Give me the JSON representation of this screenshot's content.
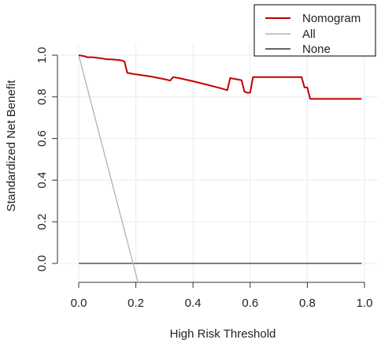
{
  "chart_data": {
    "type": "line",
    "xlabel": "High Risk Threshold",
    "ylabel": "Standardized Net Benefit",
    "xlim": [
      0,
      1
    ],
    "ylim": [
      -0.1,
      1.05
    ],
    "x_ticks": [
      0.0,
      0.2,
      0.4,
      0.6,
      0.8,
      1.0
    ],
    "x_tick_labels": [
      "0.0",
      "0.2",
      "0.4",
      "0.6",
      "0.8",
      "1.0"
    ],
    "y_ticks": [
      0.0,
      0.2,
      0.4,
      0.6,
      0.8,
      1.0
    ],
    "y_tick_labels": [
      "0.0",
      "0.2",
      "0.4",
      "0.6",
      "0.8",
      "1.0"
    ],
    "grid": true,
    "legend_position": "top-right",
    "series": [
      {
        "name": "Nomogram",
        "color": "#c00000",
        "x": [
          0.0,
          0.02,
          0.03,
          0.05,
          0.08,
          0.1,
          0.11,
          0.13,
          0.15,
          0.16,
          0.17,
          0.2,
          0.25,
          0.3,
          0.32,
          0.33,
          0.35,
          0.4,
          0.45,
          0.5,
          0.52,
          0.53,
          0.55,
          0.57,
          0.58,
          0.59,
          0.6,
          0.61,
          0.65,
          0.7,
          0.75,
          0.78,
          0.79,
          0.8,
          0.81,
          0.85,
          0.9,
          0.95,
          0.99
        ],
        "y": [
          1.0,
          0.995,
          0.99,
          0.99,
          0.985,
          0.98,
          0.98,
          0.978,
          0.975,
          0.97,
          0.915,
          0.908,
          0.898,
          0.885,
          0.878,
          0.895,
          0.89,
          0.875,
          0.858,
          0.84,
          0.832,
          0.89,
          0.885,
          0.88,
          0.825,
          0.82,
          0.82,
          0.895,
          0.895,
          0.895,
          0.895,
          0.895,
          0.845,
          0.845,
          0.79,
          0.79,
          0.79,
          0.79,
          0.79
        ]
      },
      {
        "name": "All",
        "color": "#b3b3b3",
        "x": [
          0.0,
          0.209
        ],
        "y": [
          1.0,
          -0.1
        ]
      },
      {
        "name": "None",
        "color": "#333333",
        "x": [
          0.0,
          0.99
        ],
        "y": [
          0.0,
          0.0
        ]
      }
    ]
  }
}
